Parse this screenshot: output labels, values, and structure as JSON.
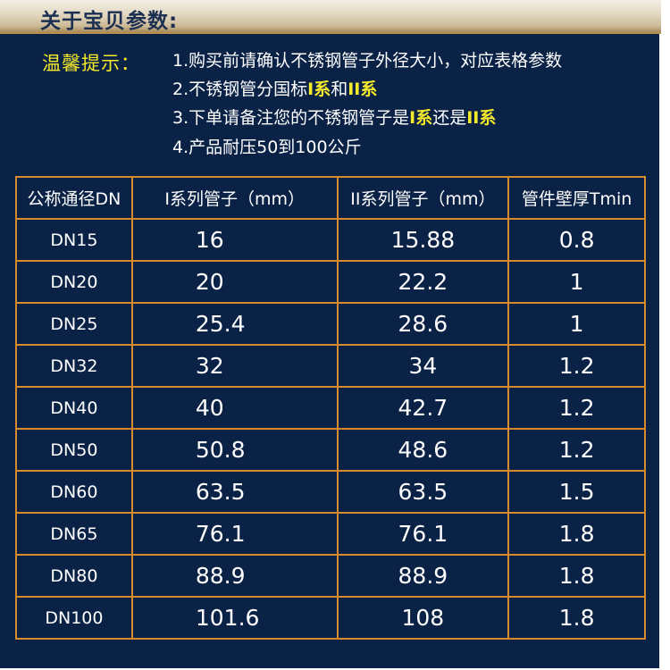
{
  "header": {
    "title": "关于宝贝参数:"
  },
  "tips": {
    "label": "温馨提示：",
    "items": [
      {
        "parts": [
          {
            "text": "1.购买前请确认不锈钢管子外径大小，对应表格参数",
            "highlight": false
          }
        ]
      },
      {
        "parts": [
          {
            "text": "2.不锈钢管分国标",
            "highlight": false
          },
          {
            "text": "I系",
            "highlight": true
          },
          {
            "text": "和",
            "highlight": false
          },
          {
            "text": "II系",
            "highlight": true
          }
        ]
      },
      {
        "parts": [
          {
            "text": "3.下单请备注您的不锈钢管子是",
            "highlight": false
          },
          {
            "text": "I系",
            "highlight": true
          },
          {
            "text": "还是",
            "highlight": false
          },
          {
            "text": "II系",
            "highlight": true
          }
        ]
      },
      {
        "parts": [
          {
            "text": "4.产品耐压50到100公斤",
            "highlight": false
          }
        ]
      }
    ]
  },
  "table": {
    "columns": [
      "公称通径DN",
      "I系列管子（mm）",
      "II系列管子（mm）",
      "管件壁厚Tmin"
    ],
    "rows": [
      [
        "DN15",
        "16",
        "15.88",
        "0.8"
      ],
      [
        "DN20",
        "20",
        "22.2",
        "1"
      ],
      [
        "DN25",
        "25.4",
        "28.6",
        "1"
      ],
      [
        "DN32",
        "32",
        "34",
        "1.2"
      ],
      [
        "DN40",
        "40",
        "42.7",
        "1.2"
      ],
      [
        "DN50",
        "50.8",
        "48.6",
        "1.2"
      ],
      [
        "DN60",
        "63.5",
        "63.5",
        "1.5"
      ],
      [
        "DN65",
        "76.1",
        "76.1",
        "1.8"
      ],
      [
        "DN80",
        "88.9",
        "88.9",
        "1.8"
      ],
      [
        "DN100",
        "101.6",
        "108",
        "1.8"
      ]
    ]
  },
  "colors": {
    "panel_bg": "#0b2247",
    "highlight": "#f5ea2a",
    "table_border": "#d98b2e",
    "title_text": "#1b2f52"
  }
}
